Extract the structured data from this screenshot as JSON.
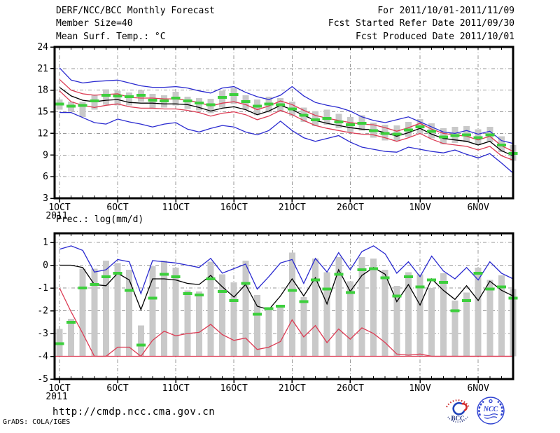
{
  "header": {
    "title": "DERF/NCC/BCC Monthly Forecast",
    "member_size": "Member Size=40",
    "for_period": "For 2011/10/01-2011/11/09",
    "fcst_started": "Fcst Started Refer Date 2011/09/30",
    "fcst_produced": "Fcst Produced Date 2011/10/01"
  },
  "footer": {
    "url": "http://cmdp.ncc.cma.gov.cn",
    "credit": "GrADS: COLA/IGES",
    "logos": [
      "BCC",
      "NCC"
    ]
  },
  "colors": {
    "envelope_blue": "#2a2ad0",
    "spread_red": "#dc3a52",
    "mean_black": "#000000",
    "marker_green": "#3ccf3c",
    "bar_gray": "#c9c9c9",
    "grid_gray": "#999999"
  },
  "chart_data": [
    {
      "type": "line",
      "title": "Mean Surf. Temp.: °C",
      "ylim": [
        3,
        24
      ],
      "yticks": [
        3,
        6,
        9,
        12,
        15,
        18,
        21,
        24
      ],
      "x_count": 40,
      "xticks": [
        {
          "i": 0,
          "label": "1OCT",
          "sub": "2011"
        },
        {
          "i": 5,
          "label": "6OCT"
        },
        {
          "i": 10,
          "label": "11OCT"
        },
        {
          "i": 15,
          "label": "16OCT"
        },
        {
          "i": 20,
          "label": "21OCT"
        },
        {
          "i": 25,
          "label": "26OCT"
        },
        {
          "i": 31,
          "label": "1NOV"
        },
        {
          "i": 36,
          "label": "6NOV"
        }
      ],
      "bars": {
        "name": "ensemble-spread-bar",
        "color": "#c9c9c9",
        "low": [
          15.3,
          15.0,
          14.3,
          15.3,
          16.0,
          15.9,
          15.9,
          16.4,
          15.4,
          15.6,
          15.9,
          15.4,
          15.2,
          14.8,
          15.6,
          16.1,
          15.3,
          14.5,
          14.9,
          15.0,
          14.4,
          13.6,
          13.0,
          13.2,
          12.7,
          12.2,
          12.4,
          11.4,
          11.0,
          10.9,
          11.5,
          11.9,
          11.3,
          10.5,
          10.7,
          10.8,
          10.4,
          10.8,
          9.4,
          8.2
        ],
        "top": [
          16.7,
          16.4,
          16.4,
          17.4,
          18.1,
          17.9,
          17.7,
          18.0,
          17.5,
          17.3,
          17.8,
          17.1,
          16.9,
          16.8,
          17.9,
          18.3,
          17.3,
          16.7,
          17.1,
          16.9,
          16.4,
          15.6,
          15.1,
          15.3,
          14.7,
          14.3,
          14.5,
          13.5,
          13.2,
          13.1,
          13.6,
          14.0,
          13.4,
          12.7,
          12.9,
          13.0,
          12.6,
          12.9,
          11.6,
          10.4
        ]
      },
      "markers": {
        "name": "verification-dash",
        "color": "#3ccf3c",
        "values": [
          16.1,
          15.8,
          15.9,
          16.5,
          17.3,
          17.2,
          17.1,
          17.3,
          16.6,
          16.5,
          16.9,
          16.5,
          16.2,
          16.0,
          17.0,
          17.4,
          16.4,
          15.8,
          16.1,
          16.0,
          15.4,
          14.5,
          13.9,
          14.1,
          13.6,
          13.2,
          13.4,
          12.4,
          12.0,
          11.9,
          12.5,
          12.9,
          12.3,
          11.5,
          11.7,
          11.8,
          11.4,
          11.8,
          10.4,
          9.2
        ]
      },
      "series": [
        {
          "name": "ensemble-max",
          "color": "#2a2ad0",
          "values": [
            21.1,
            19.4,
            19.0,
            19.2,
            19.3,
            19.4,
            19.0,
            18.6,
            18.4,
            18.4,
            18.5,
            18.3,
            17.9,
            17.6,
            18.3,
            18.5,
            17.7,
            17.1,
            16.7,
            17.3,
            18.5,
            17.2,
            16.3,
            15.9,
            15.6,
            15.1,
            14.3,
            13.8,
            13.5,
            13.9,
            14.3,
            13.6,
            12.9,
            12.2,
            12.0,
            12.4,
            11.9,
            12.3,
            11.0,
            10.6
          ]
        },
        {
          "name": "mean-plus-spread",
          "color": "#dc3a52",
          "values": [
            19.5,
            18.0,
            17.5,
            17.3,
            17.4,
            17.5,
            17.0,
            16.9,
            16.9,
            16.8,
            16.8,
            16.6,
            16.3,
            15.8,
            16.2,
            16.4,
            16.0,
            15.3,
            15.8,
            16.5,
            16.0,
            15.2,
            14.5,
            14.1,
            13.8,
            13.5,
            13.3,
            13.2,
            12.8,
            12.3,
            12.8,
            13.4,
            12.6,
            12.0,
            11.8,
            11.6,
            11.1,
            11.6,
            10.3,
            9.5
          ]
        },
        {
          "name": "ensemble-mean",
          "color": "#000000",
          "values": [
            18.4,
            17.2,
            16.6,
            16.4,
            16.6,
            16.7,
            16.3,
            16.2,
            16.2,
            16.1,
            16.1,
            16.0,
            15.6,
            15.1,
            15.5,
            15.7,
            15.3,
            14.6,
            15.1,
            15.9,
            15.3,
            14.5,
            13.8,
            13.4,
            13.1,
            12.8,
            12.6,
            12.5,
            12.1,
            11.6,
            12.1,
            12.7,
            11.9,
            11.3,
            11.1,
            10.9,
            10.4,
            10.9,
            9.6,
            8.9
          ]
        },
        {
          "name": "mean-minus-spread",
          "color": "#dc3a52",
          "values": [
            17.9,
            16.4,
            15.9,
            15.6,
            15.9,
            16.1,
            15.7,
            15.5,
            15.5,
            15.4,
            15.4,
            15.2,
            14.9,
            14.4,
            14.8,
            15.0,
            14.6,
            13.9,
            14.4,
            15.2,
            14.6,
            13.8,
            13.1,
            12.7,
            12.4,
            12.1,
            11.9,
            11.8,
            11.4,
            10.9,
            11.4,
            12.0,
            11.2,
            10.6,
            10.4,
            10.2,
            9.7,
            10.2,
            8.9,
            8.3
          ]
        },
        {
          "name": "ensemble-min",
          "color": "#2a2ad0",
          "values": [
            14.9,
            14.9,
            14.2,
            13.5,
            13.3,
            14.0,
            13.6,
            13.3,
            12.9,
            13.3,
            13.5,
            12.6,
            12.2,
            12.7,
            13.1,
            12.9,
            12.2,
            11.8,
            12.4,
            13.7,
            12.4,
            11.4,
            10.9,
            11.3,
            11.7,
            10.8,
            10.1,
            9.8,
            9.5,
            9.4,
            10.1,
            9.8,
            9.5,
            9.3,
            9.7,
            9.1,
            8.6,
            9.2,
            7.9,
            6.5
          ]
        }
      ]
    },
    {
      "type": "line",
      "title": "Prec.: log(mm/d)",
      "ylim": [
        -5,
        1.4
      ],
      "yticks": [
        -5,
        -4,
        -3,
        -2,
        -1,
        0,
        1
      ],
      "x_count": 40,
      "xticks": [
        {
          "i": 0,
          "label": "1OCT",
          "sub": "2011"
        },
        {
          "i": 5,
          "label": "6OCT"
        },
        {
          "i": 10,
          "label": "11OCT"
        },
        {
          "i": 15,
          "label": "16OCT"
        },
        {
          "i": 20,
          "label": "21OCT"
        },
        {
          "i": 25,
          "label": "26OCT"
        },
        {
          "i": 31,
          "label": "1NOV"
        },
        {
          "i": 36,
          "label": "6NOV"
        }
      ],
      "floor_line": {
        "value": -4,
        "color": "#dc3a52"
      },
      "bars": {
        "name": "ensemble-spread-bar",
        "color": "#c9c9c9",
        "low": -4,
        "top": [
          -2.8,
          -2.35,
          -0.15,
          -0.15,
          0.2,
          0.1,
          -0.2,
          -2.65,
          -0.05,
          0.2,
          -0.1,
          -1.1,
          -1.15,
          0.15,
          -0.4,
          -0.75,
          0.2,
          -1.3,
          -1.85,
          -1.75,
          0.55,
          -1.4,
          0.3,
          -0.3,
          0.35,
          -0.7,
          0.35,
          0.3,
          -0.2,
          -0.9,
          -0.3,
          -0.4,
          -1.0,
          -0.35,
          -1.55,
          -1.2,
          -0.1,
          -0.65,
          -0.45,
          -1.05
        ]
      },
      "markers": {
        "name": "verification-dash",
        "color": "#3ccf3c",
        "values": [
          -3.45,
          -2.5,
          -1.0,
          -0.85,
          -0.5,
          -0.35,
          -1.1,
          -3.5,
          -1.45,
          -0.4,
          -0.5,
          -1.25,
          -1.3,
          -0.6,
          -1.15,
          -1.55,
          -0.8,
          -2.15,
          -1.9,
          -1.8,
          -1.1,
          -1.6,
          -0.65,
          -1.05,
          -0.4,
          -1.2,
          -0.2,
          -0.15,
          -0.55,
          -1.35,
          -0.5,
          -0.95,
          -0.65,
          -0.75,
          -2.0,
          -1.55,
          -0.35,
          -1.05,
          -0.95,
          -1.45
        ]
      },
      "series": [
        {
          "name": "ensemble-max",
          "color": "#2a2ad0",
          "values": [
            0.7,
            0.85,
            0.65,
            -0.3,
            -0.2,
            0.25,
            0.15,
            -1.25,
            0.2,
            0.15,
            0.1,
            0.0,
            -0.1,
            0.3,
            -0.35,
            -0.15,
            0.05,
            -1.05,
            -0.5,
            0.1,
            0.25,
            -0.8,
            0.3,
            -0.3,
            0.55,
            -0.2,
            0.6,
            0.85,
            0.5,
            -0.35,
            0.15,
            -0.5,
            0.4,
            -0.25,
            -0.6,
            -0.1,
            -0.65,
            0.15,
            -0.35,
            -0.6
          ]
        },
        {
          "name": "ensemble-mean",
          "color": "#000000",
          "values": [
            0.0,
            0.0,
            -0.1,
            -0.85,
            -0.9,
            -0.35,
            -0.65,
            -1.95,
            -0.6,
            -0.6,
            -0.65,
            -0.8,
            -0.85,
            -0.45,
            -0.95,
            -1.4,
            -0.85,
            -1.8,
            -1.95,
            -1.35,
            -0.6,
            -1.35,
            -0.55,
            -1.7,
            -0.2,
            -1.15,
            -0.45,
            -0.1,
            -0.4,
            -1.6,
            -0.85,
            -1.75,
            -0.6,
            -1.1,
            -1.5,
            -0.9,
            -1.55,
            -0.7,
            -1.1,
            -1.35
          ]
        },
        {
          "name": "ensemble-min",
          "color": "#dc3a52",
          "values": [
            -1.0,
            -2.05,
            -3.0,
            -4.0,
            -4.0,
            -3.6,
            -3.6,
            -4.0,
            -3.3,
            -2.9,
            -3.1,
            -3.0,
            -2.95,
            -2.6,
            -3.05,
            -3.3,
            -3.2,
            -3.7,
            -3.6,
            -3.35,
            -2.4,
            -3.15,
            -2.65,
            -3.4,
            -2.8,
            -3.25,
            -2.75,
            -3.0,
            -3.4,
            -3.9,
            -3.95,
            -3.9,
            -4.0,
            -4.0,
            -4.0,
            -4.0,
            -4.0,
            -4.0,
            -4.0,
            -4.0
          ]
        }
      ]
    }
  ]
}
